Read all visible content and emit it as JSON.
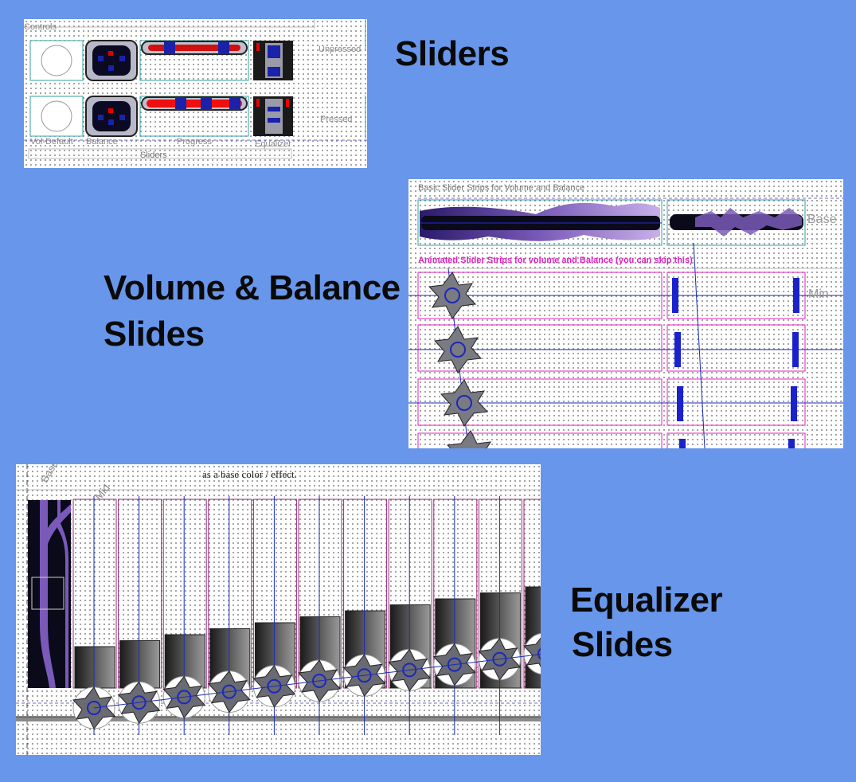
{
  "captions": {
    "sliders": "Sliders",
    "volume_balance_line1": "Volume & Balance",
    "volume_balance_line2": "Slides",
    "equalizer_line1": "Equalizer",
    "equalizer_line2": "Slides"
  },
  "sliders_panel": {
    "section_title": "Controls",
    "row_labels": [
      "Unpressed",
      "Pressed"
    ],
    "column_labels": [
      "Vol-Default",
      "Balance",
      "Progress",
      "Equalizer"
    ],
    "footer": "Sliders"
  },
  "volume_panel": {
    "header": "Basic Slider Strips for Volume and Balance",
    "base_label": "Base",
    "animated_header": "Animated Slider Strips for volume and Balance (you can skip this)",
    "min_label": "Min"
  },
  "equalizer_panel": {
    "header_note": "as a base color / effect.",
    "base_label": "Base",
    "mid_label": "Mid"
  },
  "colors": {
    "background": "#6896ea",
    "magenta_accent": "#e020c0",
    "teal_outline": "#30a0a0",
    "guide_blue": "#1a2ab8",
    "purple_strip": "#5a3a9a"
  }
}
